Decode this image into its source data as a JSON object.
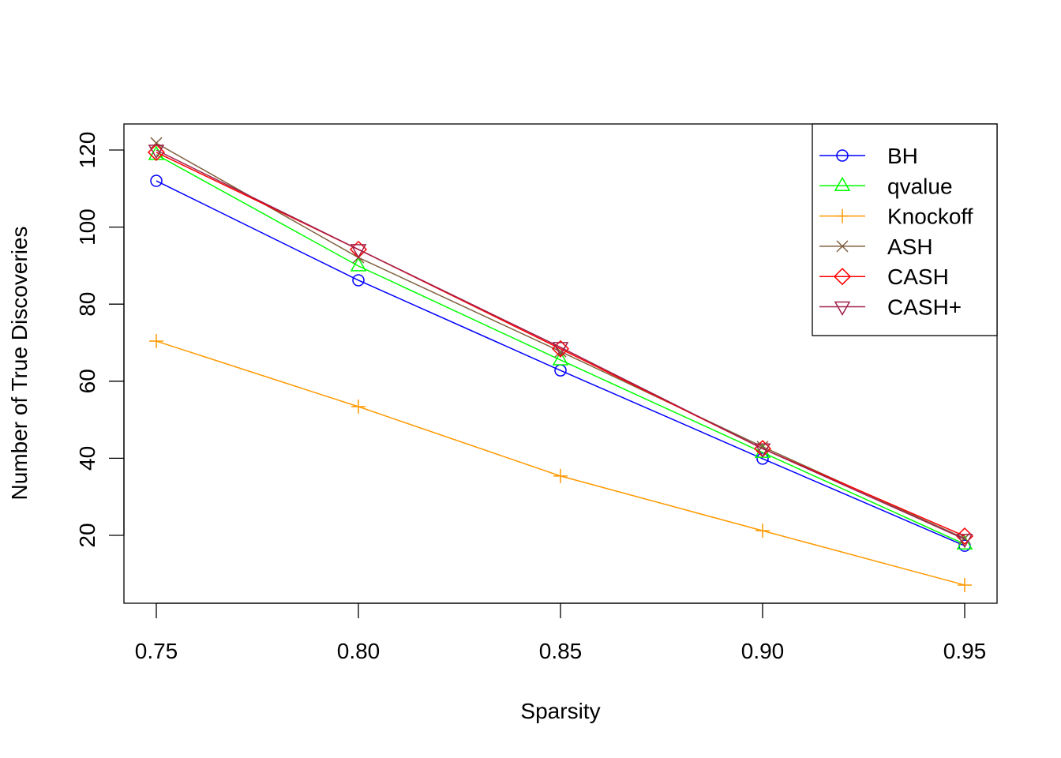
{
  "chart_data": {
    "type": "line",
    "title": "",
    "xlabel": "Sparsity",
    "ylabel": "Number of True Discoveries",
    "x": [
      0.75,
      0.8,
      0.85,
      0.9,
      0.95
    ],
    "x_tick_labels": [
      "0.75",
      "0.80",
      "0.85",
      "0.90",
      "0.95"
    ],
    "y_ticks": [
      20,
      40,
      60,
      80,
      100,
      120
    ],
    "y_tick_labels": [
      "20",
      "40",
      "60",
      "80",
      "100",
      "120"
    ],
    "xlim": [
      0.742,
      0.958
    ],
    "ylim": [
      2.5,
      126.5
    ],
    "grid": false,
    "legend_position": "top-right",
    "series": [
      {
        "name": "BH",
        "color": "#0000FF",
        "marker": "circle",
        "values": [
          112.0,
          86.2,
          62.8,
          39.9,
          17.3
        ]
      },
      {
        "name": "qvalue",
        "color": "#00FF00",
        "marker": "triangle-up",
        "values": [
          118.8,
          89.9,
          65.5,
          41.5,
          17.7
        ]
      },
      {
        "name": "Knockoff",
        "color": "#FF9900",
        "marker": "plus",
        "values": [
          70.4,
          53.4,
          35.4,
          21.2,
          7.1
        ]
      },
      {
        "name": "ASH",
        "color": "#80603F",
        "marker": "cross",
        "values": [
          121.8,
          92.1,
          67.7,
          43.0,
          19.2
        ]
      },
      {
        "name": "CASH",
        "color": "#FF0000",
        "marker": "diamond",
        "values": [
          119.4,
          94.2,
          68.4,
          42.5,
          19.8
        ]
      },
      {
        "name": "CASH+",
        "color": "#A0204A",
        "marker": "triangle-down",
        "values": [
          120.0,
          94.2,
          68.8,
          42.5,
          19.0
        ]
      }
    ]
  }
}
